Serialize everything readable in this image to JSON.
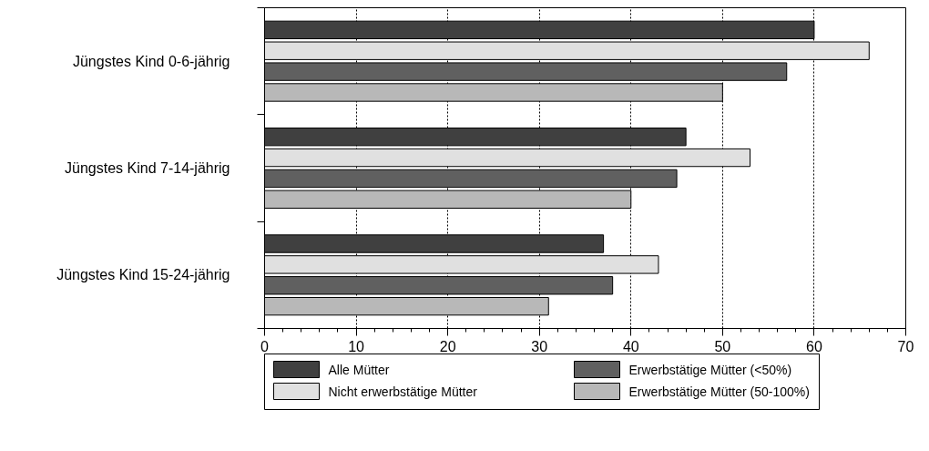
{
  "chart_data": {
    "type": "bar",
    "orientation": "horizontal",
    "categories": [
      "Jüngstes Kind 0-6-jährig",
      "Jüngstes Kind 7-14-jährig",
      "Jüngstes Kind 15-24-jährig"
    ],
    "series": [
      {
        "name": "Alle Mütter",
        "color": "#404040",
        "values": [
          60,
          46,
          37
        ]
      },
      {
        "name": "Nicht erwerbstätige Mütter",
        "color": "#e0e0e0",
        "values": [
          66,
          53,
          43
        ]
      },
      {
        "name": "Erwerbstätige Mütter (<50%)",
        "color": "#606060",
        "values": [
          57,
          45,
          38
        ]
      },
      {
        "name": "Erwerbstätige Mütter (50-100%)",
        "color": "#b8b8b8",
        "values": [
          50,
          40,
          31
        ]
      }
    ],
    "xlim": [
      0,
      70
    ],
    "xticks": [
      0,
      10,
      20,
      30,
      40,
      50,
      60,
      70
    ],
    "grid": "x",
    "legend": "bottom"
  }
}
